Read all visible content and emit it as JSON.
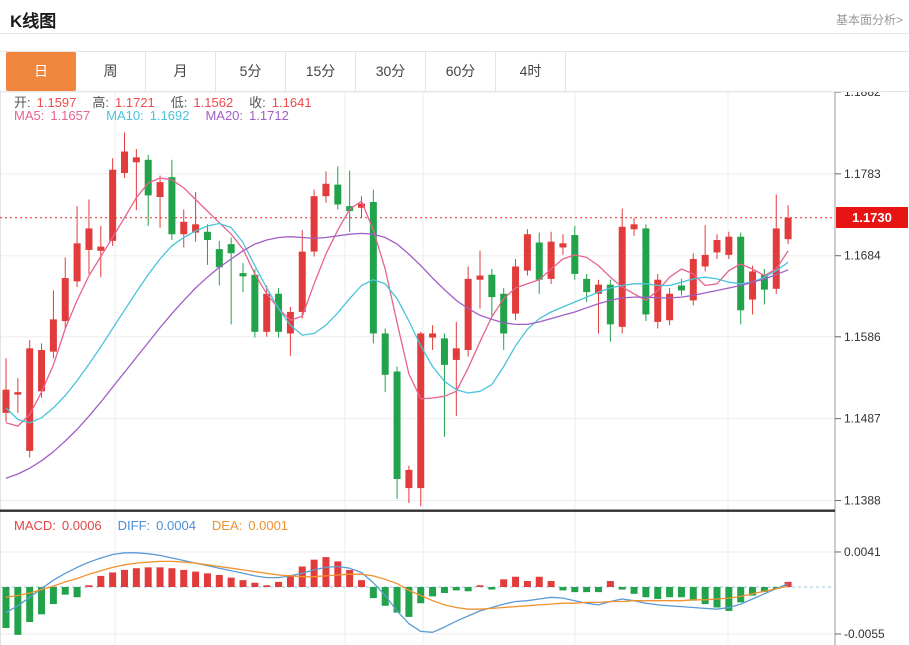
{
  "header": {
    "title": "K线图",
    "link_label": "基本面分析>"
  },
  "tabs": {
    "items": [
      {
        "label": "日",
        "active": true
      },
      {
        "label": "周",
        "active": false
      },
      {
        "label": "月",
        "active": false
      },
      {
        "label": "5分",
        "active": false
      },
      {
        "label": "15分",
        "active": false
      },
      {
        "label": "30分",
        "active": false
      },
      {
        "label": "60分",
        "active": false
      },
      {
        "label": "4时",
        "active": false
      }
    ]
  },
  "info_bar": {
    "ohlc": [
      {
        "label": "开:",
        "value": "1.1597"
      },
      {
        "label": "高:",
        "value": "1.1721"
      },
      {
        "label": "低:",
        "value": "1.1562"
      },
      {
        "label": "收:",
        "value": "1.1641"
      }
    ],
    "ma": [
      {
        "label": "MA5:",
        "value": "1.1657",
        "color": "#e8638f"
      },
      {
        "label": "MA10:",
        "value": "1.1692",
        "color": "#49c4da"
      },
      {
        "label": "MA20:",
        "value": "1.1712",
        "color": "#a05fc6"
      }
    ]
  },
  "macd_bar": [
    {
      "label": "MACD:",
      "value": "0.0006",
      "color": "#e24545"
    },
    {
      "label": "DIFF:",
      "value": "0.0004",
      "color": "#4a90d9"
    },
    {
      "label": "DEA:",
      "value": "0.0001",
      "color": "#f0922e"
    }
  ],
  "colors": {
    "up": "#e23b3b",
    "down": "#22a24b",
    "ma5": "#e8638f",
    "ma10": "#49c4da",
    "ma20": "#a05fc6",
    "diff": "#5b9bd5",
    "dea": "#f0922e",
    "badge": "#e81414",
    "grid": "#ededed",
    "axis": "#999999",
    "tick_text": "#333333",
    "dotted": "#e84040",
    "zero": "#9fc6dd",
    "divider": "#333333"
  },
  "chart_data": {
    "type": "candlestick+macd",
    "title": "K线图",
    "price_ticks": [
      "1.1882",
      "1.1783",
      "1.1684",
      "1.1586",
      "1.1487",
      "1.1388"
    ],
    "last_price": "1.1730",
    "macd_ticks": [
      "0.0041",
      "-0.0055"
    ],
    "legend": {
      "ohlc": "开/高/低/收",
      "lines": [
        "MA5",
        "MA10",
        "MA20"
      ],
      "sub": [
        "MACD",
        "DIFF",
        "DEA"
      ]
    },
    "candles": [
      [
        1.1494,
        1.156,
        1.1483,
        1.1522
      ],
      [
        1.1516,
        1.1536,
        1.1494,
        1.1519
      ],
      [
        1.1448,
        1.1582,
        1.144,
        1.1572
      ],
      [
        1.152,
        1.1578,
        1.1512,
        1.157
      ],
      [
        1.1568,
        1.1642,
        1.156,
        1.1607
      ],
      [
        1.1605,
        1.1682,
        1.1596,
        1.1657
      ],
      [
        1.1653,
        1.1744,
        1.1646,
        1.1699
      ],
      [
        1.1691,
        1.1752,
        1.1662,
        1.1717
      ],
      [
        1.169,
        1.172,
        1.1658,
        1.1695
      ],
      [
        1.1702,
        1.1802,
        1.1696,
        1.1788
      ],
      [
        1.1784,
        1.1833,
        1.1778,
        1.181
      ],
      [
        1.1797,
        1.1813,
        1.1739,
        1.1803
      ],
      [
        1.18,
        1.1806,
        1.172,
        1.1757
      ],
      [
        1.1755,
        1.1781,
        1.1718,
        1.1773
      ],
      [
        1.1779,
        1.18,
        1.1703,
        1.171
      ],
      [
        1.171,
        1.174,
        1.1694,
        1.1725
      ],
      [
        1.1712,
        1.1761,
        1.1701,
        1.1722
      ],
      [
        1.1713,
        1.1722,
        1.1673,
        1.1703
      ],
      [
        1.1692,
        1.1702,
        1.1648,
        1.167
      ],
      [
        1.1698,
        1.1706,
        1.1601,
        1.1687
      ],
      [
        1.1663,
        1.1675,
        1.164,
        1.1659
      ],
      [
        1.1661,
        1.1668,
        1.1585,
        1.1592
      ],
      [
        1.1592,
        1.1648,
        1.1586,
        1.1638
      ],
      [
        1.1638,
        1.1645,
        1.1585,
        1.1592
      ],
      [
        1.159,
        1.1622,
        1.1563,
        1.1616
      ],
      [
        1.1616,
        1.1715,
        1.1608,
        1.1689
      ],
      [
        1.1689,
        1.1764,
        1.1683,
        1.1756
      ],
      [
        1.1756,
        1.1786,
        1.1748,
        1.1771
      ],
      [
        1.177,
        1.1792,
        1.174,
        1.1746
      ],
      [
        1.1744,
        1.1787,
        1.1713,
        1.1738
      ],
      [
        1.1742,
        1.1756,
        1.173,
        1.1747
      ],
      [
        1.1749,
        1.1764,
        1.1578,
        1.159
      ],
      [
        1.159,
        1.1596,
        1.1519,
        1.154
      ],
      [
        1.1544,
        1.155,
        1.139,
        1.1414
      ],
      [
        1.1403,
        1.143,
        1.1385,
        1.1425
      ],
      [
        1.1403,
        1.1592,
        1.1381,
        1.159
      ],
      [
        1.1585,
        1.16,
        1.157,
        1.159
      ],
      [
        1.1584,
        1.159,
        1.1465,
        1.1552
      ],
      [
        1.1558,
        1.1604,
        1.149,
        1.1572
      ],
      [
        1.157,
        1.1671,
        1.1562,
        1.1656
      ],
      [
        1.1655,
        1.169,
        1.162,
        1.166
      ],
      [
        1.1661,
        1.1668,
        1.161,
        1.1634
      ],
      [
        1.1638,
        1.1645,
        1.157,
        1.159
      ],
      [
        1.1614,
        1.168,
        1.1606,
        1.1671
      ],
      [
        1.1666,
        1.1716,
        1.166,
        1.171
      ],
      [
        1.17,
        1.1712,
        1.1638,
        1.1655
      ],
      [
        1.1656,
        1.1713,
        1.165,
        1.1701
      ],
      [
        1.1694,
        1.171,
        1.1685,
        1.1699
      ],
      [
        1.1709,
        1.172,
        1.1655,
        1.1662
      ],
      [
        1.1656,
        1.1662,
        1.1628,
        1.164
      ],
      [
        1.1638,
        1.1655,
        1.159,
        1.1649
      ],
      [
        1.1649,
        1.1655,
        1.158,
        1.1601
      ],
      [
        1.1598,
        1.1741,
        1.159,
        1.1719
      ],
      [
        1.1716,
        1.173,
        1.1708,
        1.1722
      ],
      [
        1.1717,
        1.1722,
        1.1605,
        1.1613
      ],
      [
        1.1604,
        1.1662,
        1.1596,
        1.1655
      ],
      [
        1.1606,
        1.1645,
        1.16,
        1.1638
      ],
      [
        1.1648,
        1.1656,
        1.1636,
        1.1642
      ],
      [
        1.163,
        1.1687,
        1.1624,
        1.168
      ],
      [
        1.1671,
        1.1721,
        1.1665,
        1.1685
      ],
      [
        1.1688,
        1.171,
        1.168,
        1.1703
      ],
      [
        1.1685,
        1.1713,
        1.168,
        1.1707
      ],
      [
        1.1707,
        1.1712,
        1.1601,
        1.1618
      ],
      [
        1.1631,
        1.1672,
        1.1613,
        1.1665
      ],
      [
        1.1661,
        1.1668,
        1.1625,
        1.1643
      ],
      [
        1.1644,
        1.1758,
        1.1638,
        1.1717
      ],
      [
        1.1704,
        1.1745,
        1.1698,
        1.173
      ]
    ],
    "ma5": [
      1.1482,
      1.1478,
      1.1492,
      1.1519,
      1.1552,
      1.1596,
      1.163,
      1.166,
      1.1683,
      1.1706,
      1.173,
      1.1754,
      1.1772,
      1.1778,
      1.1776,
      1.1766,
      1.1752,
      1.1738,
      1.1724,
      1.171,
      1.1692,
      1.1662,
      1.1638,
      1.162,
      1.1606,
      1.1611,
      1.165,
      1.1686,
      1.1715,
      1.174,
      1.175,
      1.1715,
      1.1668,
      1.1603,
      1.1541,
      1.1511,
      1.1512,
      1.1514,
      1.152,
      1.1548,
      1.158,
      1.161,
      1.1632,
      1.1645,
      1.165,
      1.1655,
      1.1668,
      1.168,
      1.1685,
      1.1682,
      1.1672,
      1.1658,
      1.1646,
      1.1638,
      1.163,
      1.1642,
      1.1658,
      1.1668,
      1.1662,
      1.1648,
      1.165,
      1.1666,
      1.1674,
      1.1668,
      1.166,
      1.1668,
      1.169
    ],
    "ma10": [
      1.15,
      1.1486,
      1.1482,
      1.1488,
      1.15,
      1.1515,
      1.1533,
      1.1553,
      1.1574,
      1.1596,
      1.1618,
      1.164,
      1.1661,
      1.168,
      1.1696,
      1.1706,
      1.1714,
      1.172,
      1.1723,
      1.1718,
      1.17,
      1.1672,
      1.1645,
      1.162,
      1.16,
      1.1588,
      1.159,
      1.16,
      1.1615,
      1.1632,
      1.1648,
      1.1655,
      1.165,
      1.1632,
      1.1605,
      1.1575,
      1.155,
      1.1532,
      1.1522,
      1.1518,
      1.152,
      1.1528,
      1.155,
      1.1575,
      1.1595,
      1.1608,
      1.1616,
      1.1622,
      1.1628,
      1.1634,
      1.164,
      1.1645,
      1.1648,
      1.165,
      1.165,
      1.1648,
      1.1648,
      1.1652,
      1.1656,
      1.1658,
      1.1656,
      1.1652,
      1.165,
      1.1652,
      1.1658,
      1.1666,
      1.1676
    ],
    "ma20": [
      1.1415,
      1.142,
      1.1427,
      1.1436,
      1.1447,
      1.146,
      1.1474,
      1.149,
      1.1507,
      1.1525,
      1.1543,
      1.1561,
      1.1579,
      1.1597,
      1.1614,
      1.163,
      1.1645,
      1.1658,
      1.167,
      1.168,
      1.169,
      1.1698,
      1.1703,
      1.1706,
      1.1707,
      1.1706,
      1.1705,
      1.1706,
      1.1708,
      1.171,
      1.1711,
      1.171,
      1.1706,
      1.1698,
      1.1686,
      1.1672,
      1.1657,
      1.1643,
      1.163,
      1.162,
      1.1612,
      1.1607,
      1.1603,
      1.1601,
      1.1601,
      1.1604,
      1.1608,
      1.1612,
      1.1616,
      1.1621,
      1.1626,
      1.163,
      1.1633,
      1.1634,
      1.1634,
      1.1633,
      1.1633,
      1.1634,
      1.1636,
      1.1639,
      1.1642,
      1.1645,
      1.1648,
      1.1652,
      1.1656,
      1.1661,
      1.1667
    ],
    "macd_hist": [
      -0.0048,
      -0.0056,
      -0.0041,
      -0.0032,
      -0.002,
      -0.0009,
      -0.0012,
      0.0002,
      0.0013,
      0.0017,
      0.002,
      0.0022,
      0.0023,
      0.0023,
      0.0022,
      0.002,
      0.0018,
      0.0016,
      0.0014,
      0.0011,
      0.0008,
      0.0005,
      0.0002,
      0.0006,
      0.0014,
      0.0024,
      0.0032,
      0.0035,
      0.003,
      0.002,
      0.0008,
      -0.0013,
      -0.0022,
      -0.003,
      -0.0035,
      -0.0019,
      -0.0011,
      -0.0007,
      -0.0004,
      -0.0005,
      0.0002,
      -0.0003,
      0.0009,
      0.0012,
      0.0007,
      0.0012,
      0.0007,
      -0.0004,
      -0.0006,
      -0.0006,
      -0.0006,
      0.0007,
      -0.0003,
      -0.0008,
      -0.0012,
      -0.0014,
      -0.0012,
      -0.0012,
      -0.0016,
      -0.002,
      -0.0024,
      -0.0028,
      -0.0018,
      -0.001,
      -0.0006,
      -0.0002,
      0.0006
    ],
    "diff": [
      -0.003,
      -0.0022,
      -0.0012,
      -0.0002,
      0.0008,
      0.0016,
      0.0023,
      0.0029,
      0.0034,
      0.0038,
      0.004,
      0.004,
      0.0039,
      0.0037,
      0.0034,
      0.0031,
      0.0028,
      0.0025,
      0.0022,
      0.0019,
      0.0016,
      0.0013,
      0.0011,
      0.0011,
      0.0013,
      0.0016,
      0.002,
      0.0023,
      0.0024,
      0.0022,
      0.0017,
      0.0005,
      -0.001,
      -0.0028,
      -0.0043,
      -0.0052,
      -0.0053,
      -0.0047,
      -0.004,
      -0.0034,
      -0.0028,
      -0.0024,
      -0.002,
      -0.0017,
      -0.0016,
      -0.0014,
      -0.0012,
      -0.0013,
      -0.0016,
      -0.0019,
      -0.0021,
      -0.0017,
      -0.0014,
      -0.0016,
      -0.0019,
      -0.0021,
      -0.0022,
      -0.0023,
      -0.0024,
      -0.0025,
      -0.0026,
      -0.0024,
      -0.002,
      -0.0014,
      -0.0008,
      -0.0002,
      0.0004
    ],
    "dea": [
      -0.0012,
      -0.001,
      -0.0007,
      -0.0003,
      0.0001,
      0.0006,
      0.001,
      0.0015,
      0.0019,
      0.0023,
      0.0026,
      0.0028,
      0.0029,
      0.003,
      0.003,
      0.0029,
      0.0028,
      0.0026,
      0.0024,
      0.0022,
      0.002,
      0.0018,
      0.0016,
      0.0014,
      0.0013,
      0.0012,
      0.0012,
      0.0013,
      0.0014,
      0.0015,
      0.0015,
      0.0013,
      0.0009,
      0.0004,
      -0.0004,
      -0.001,
      -0.0016,
      -0.0021,
      -0.0024,
      -0.0026,
      -0.0026,
      -0.0025,
      -0.0024,
      -0.0023,
      -0.0022,
      -0.0021,
      -0.002,
      -0.0019,
      -0.0019,
      -0.0018,
      -0.0018,
      -0.0017,
      -0.0017,
      -0.0016,
      -0.0016,
      -0.0016,
      -0.0016,
      -0.0016,
      -0.0015,
      -0.0015,
      -0.0014,
      -0.0013,
      -0.0011,
      -0.0008,
      -0.0005,
      -0.0002,
      0.0001
    ]
  }
}
